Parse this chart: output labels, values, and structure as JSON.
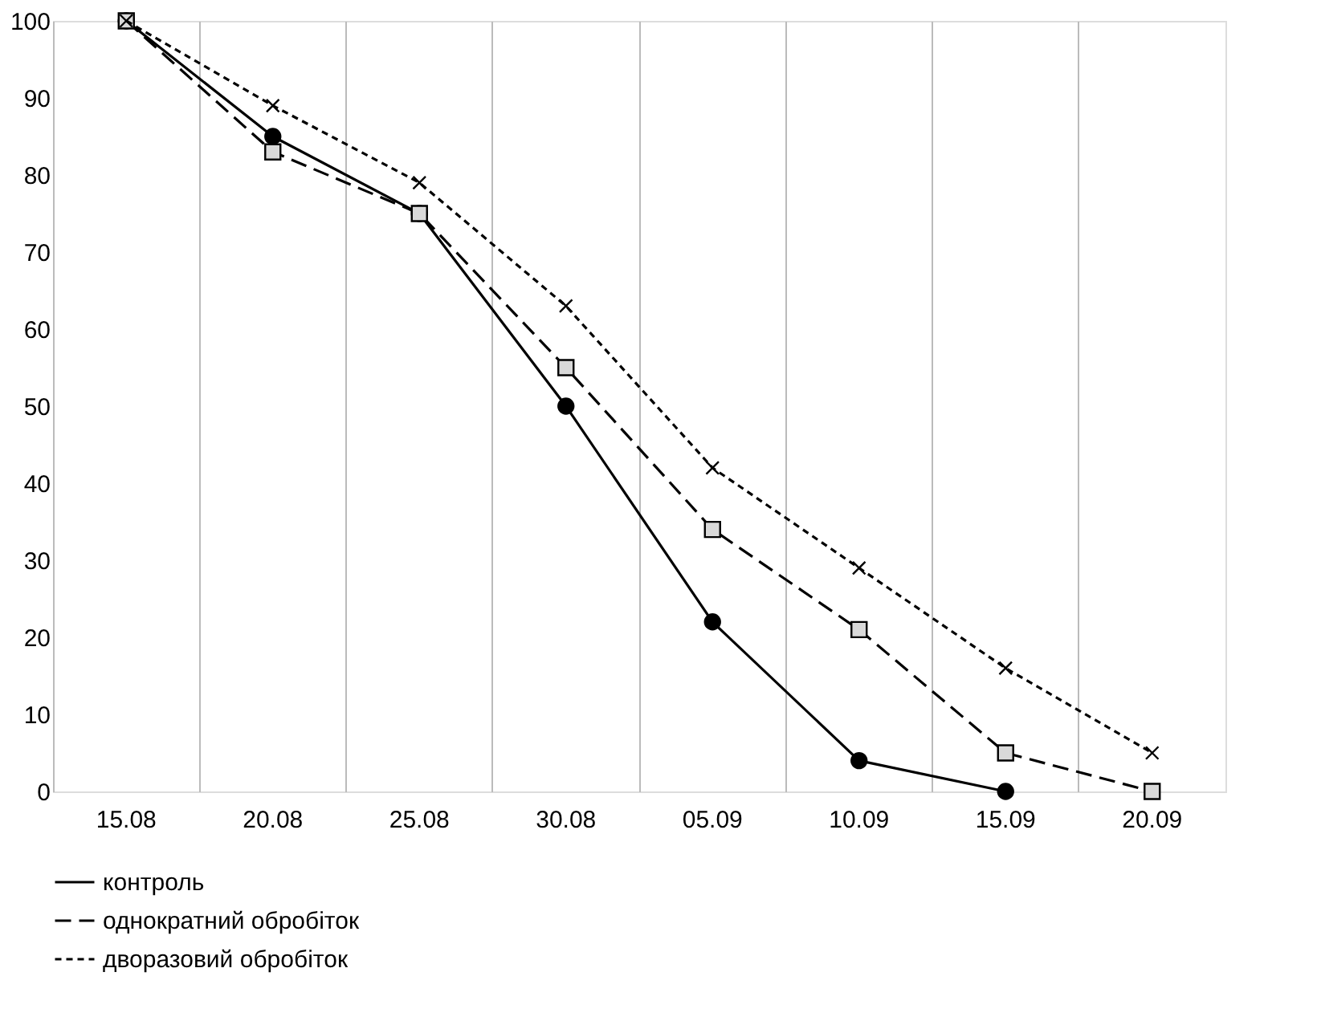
{
  "chart_data": {
    "type": "line",
    "categories": [
      "15.08",
      "20.08",
      "25.08",
      "30.08",
      "05.09",
      "10.09",
      "15.09",
      "20.09"
    ],
    "series": [
      {
        "name": "контроль",
        "color": "#000000",
        "marker": "circle",
        "line_style": "solid",
        "values": [
          100,
          85,
          75,
          50,
          22,
          4,
          0,
          null
        ]
      },
      {
        "name": "однократний обробіток",
        "color": "#000000",
        "marker": "square",
        "line_style": "dashed",
        "values": [
          100,
          83,
          75,
          55,
          34,
          21,
          5,
          0
        ]
      },
      {
        "name": "дворазовий обробіток",
        "color": "#000000",
        "marker": "cross",
        "line_style": "dotted",
        "values": [
          100,
          89,
          79,
          63,
          42,
          29,
          16,
          5
        ]
      }
    ],
    "ylim": [
      0,
      100
    ],
    "yticks": [
      0,
      10,
      20,
      30,
      40,
      50,
      60,
      70,
      80,
      90,
      100
    ],
    "grid": "x",
    "legend": "bottom"
  }
}
